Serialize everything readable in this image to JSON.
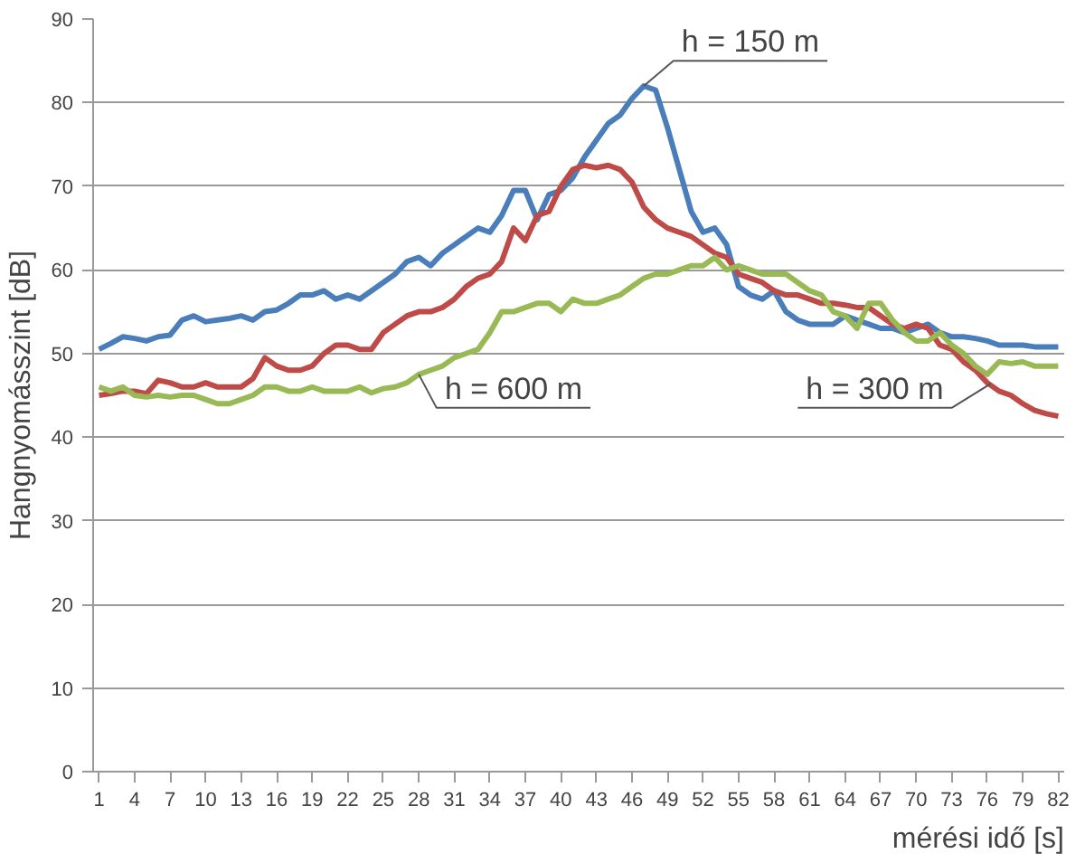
{
  "chart_data": {
    "type": "line",
    "xlabel": "mérési idő [s]",
    "ylabel": "Hangnyomásszint [dB]",
    "x": [
      1,
      2,
      3,
      4,
      5,
      6,
      7,
      8,
      9,
      10,
      11,
      12,
      13,
      14,
      15,
      16,
      17,
      18,
      19,
      20,
      21,
      22,
      23,
      24,
      25,
      26,
      27,
      28,
      29,
      30,
      31,
      32,
      33,
      34,
      35,
      36,
      37,
      38,
      39,
      40,
      41,
      42,
      43,
      44,
      45,
      46,
      47,
      48,
      49,
      50,
      51,
      52,
      53,
      54,
      55,
      56,
      57,
      58,
      59,
      60,
      61,
      62,
      63,
      64,
      65,
      66,
      67,
      68,
      69,
      70,
      71,
      72,
      73,
      74,
      75,
      76,
      77,
      78,
      79,
      80,
      81,
      82
    ],
    "series": [
      {
        "color": "#4a7ebb",
        "values": [
          50.5,
          51.2,
          52,
          51.8,
          51.5,
          52,
          52.2,
          54,
          54.5,
          53.8,
          54,
          54.2,
          54.5,
          54,
          55,
          55.2,
          56,
          57,
          57,
          57.5,
          56.5,
          57,
          56.5,
          57.5,
          58.5,
          59.5,
          61,
          61.5,
          60.5,
          62,
          63,
          64,
          65,
          64.5,
          66.5,
          69.5,
          69.5,
          66,
          69,
          69.5,
          71,
          73.5,
          75.5,
          77.5,
          78.5,
          80.5,
          82,
          81.5,
          77,
          72,
          67,
          64.5,
          65,
          63,
          58,
          57,
          56.5,
          57.5,
          55,
          54,
          53.5,
          53.5,
          53.5,
          54.5,
          54,
          53.5,
          53,
          53,
          52.5,
          53,
          53.5,
          52.5,
          52,
          52,
          51.8,
          51.5,
          51,
          51,
          51,
          50.8,
          50.8,
          50.8
        ]
      },
      {
        "color": "#be4b48",
        "values": [
          45,
          45.2,
          45.5,
          45.5,
          45.2,
          46.8,
          46.5,
          46,
          46,
          46.5,
          46,
          46,
          46,
          47,
          49.5,
          48.5,
          48,
          48,
          48.5,
          50,
          51,
          51,
          50.5,
          50.5,
          52.5,
          53.5,
          54.5,
          55,
          55,
          55.5,
          56.5,
          58,
          59,
          59.5,
          61,
          65,
          63.5,
          66.5,
          67,
          70,
          72,
          72.5,
          72.2,
          72.5,
          72,
          70.5,
          67.5,
          66,
          65,
          64.5,
          64,
          63,
          62,
          61.5,
          59.5,
          59,
          58.5,
          57.5,
          57,
          57,
          56.5,
          56,
          56,
          55.8,
          55.5,
          55.5,
          54.5,
          53.5,
          53,
          53.5,
          53,
          51,
          50.5,
          49,
          48,
          46.5,
          45.5,
          45,
          44,
          43.2,
          42.8,
          42.5
        ]
      },
      {
        "color": "#98b954",
        "values": [
          46,
          45.5,
          46,
          45,
          44.8,
          45,
          44.8,
          45,
          45,
          44.5,
          44,
          44,
          44.5,
          45,
          46,
          46,
          45.5,
          45.5,
          46,
          45.5,
          45.5,
          45.5,
          46,
          45.3,
          45.8,
          46,
          46.5,
          47.5,
          48,
          48.5,
          49.5,
          50,
          50.5,
          52.5,
          55,
          55,
          55.5,
          56,
          56,
          55,
          56.5,
          56,
          56,
          56.5,
          57,
          58,
          59,
          59.5,
          59.5,
          60,
          60.5,
          60.5,
          61.5,
          60,
          60.5,
          60,
          59.5,
          59.5,
          59.5,
          58.5,
          57.5,
          57,
          55,
          54.5,
          53,
          56,
          56,
          54,
          52.5,
          51.5,
          51.5,
          52.5,
          51,
          50,
          48.5,
          47.5,
          49,
          48.8,
          49,
          48.5,
          48.5,
          48.5
        ]
      }
    ],
    "annotations": [
      {
        "text": "h = 150 m",
        "x": 47,
        "y": 82
      },
      {
        "text": "h = 600 m",
        "x": 28,
        "y": 47.5
      },
      {
        "text": "h = 300 m",
        "x": 76.3,
        "y": 46.4
      }
    ],
    "xlim": [
      0.5,
      82.5
    ],
    "xticks": [
      1,
      4,
      7,
      10,
      13,
      16,
      19,
      22,
      25,
      28,
      31,
      34,
      37,
      40,
      43,
      46,
      49,
      52,
      55,
      58,
      61,
      64,
      67,
      70,
      73,
      76,
      79,
      82
    ],
    "ylim": [
      0,
      90
    ],
    "yticks": [
      0,
      10,
      20,
      30,
      40,
      50,
      60,
      70,
      80,
      90
    ],
    "grid": "y",
    "marker": "none",
    "line_style": "solid"
  }
}
